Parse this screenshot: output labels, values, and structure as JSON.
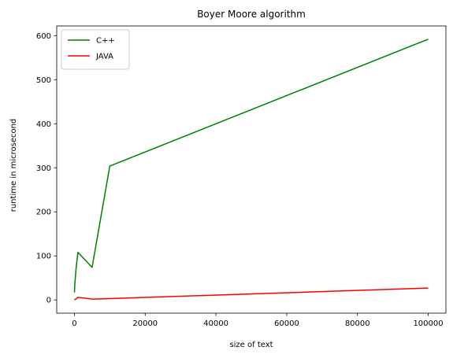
{
  "chart_data": {
    "type": "line",
    "title": "Boyer Moore algorithm",
    "xlabel": "size of text",
    "ylabel": "runtime in microsecond",
    "xlim": [
      -5000,
      105000
    ],
    "ylim": [
      -30,
      622
    ],
    "xticks": [
      0,
      20000,
      40000,
      60000,
      80000,
      100000
    ],
    "yticks": [
      0,
      100,
      200,
      300,
      400,
      500,
      600
    ],
    "grid": false,
    "legend_position": "top-left",
    "series": [
      {
        "name": "C++",
        "color": "#008000",
        "x": [
          10,
          100,
          500,
          1000,
          5000,
          10000,
          100000
        ],
        "y": [
          17,
          34,
          74,
          108,
          74,
          304,
          592
        ]
      },
      {
        "name": "JAVA",
        "color": "#ff0000",
        "x": [
          10,
          100,
          500,
          1000,
          5000,
          10000,
          100000
        ],
        "y": [
          0,
          1,
          2,
          6,
          2,
          3,
          27
        ]
      }
    ]
  }
}
